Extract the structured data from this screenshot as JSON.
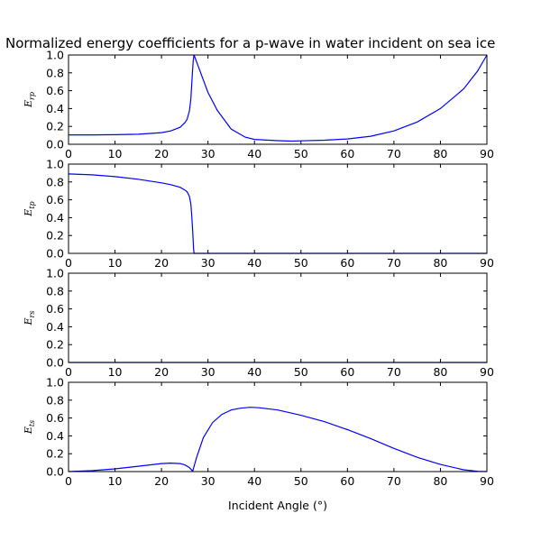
{
  "chart_data": {
    "type": "line",
    "title": "Normalized energy coefficients for a p-wave in water incident on sea ice",
    "xlabel": "Incident Angle (°)",
    "xlim": [
      0,
      90
    ],
    "xticks": [
      "0",
      "10",
      "20",
      "30",
      "40",
      "50",
      "60",
      "70",
      "80",
      "90"
    ],
    "yticks": [
      "0.0",
      "0.2",
      "0.4",
      "0.6",
      "0.8",
      "1.0"
    ],
    "line_color": "#0000ff",
    "grid": false,
    "panels": [
      {
        "ylabel": "E_rp",
        "ylabel_main": "E",
        "ylabel_sub": "rp",
        "ylim": [
          0,
          1
        ],
        "x": [
          0,
          5,
          10,
          15,
          20,
          22,
          24,
          25,
          25.5,
          26,
          26.3,
          26.6,
          26.8,
          27,
          28,
          29,
          30,
          32,
          35,
          38,
          40,
          45,
          48,
          50,
          55,
          60,
          65,
          70,
          75,
          80,
          85,
          88,
          90
        ],
        "y": [
          0.105,
          0.105,
          0.107,
          0.112,
          0.13,
          0.15,
          0.19,
          0.24,
          0.28,
          0.37,
          0.5,
          0.75,
          0.93,
          1.0,
          0.86,
          0.72,
          0.58,
          0.38,
          0.17,
          0.08,
          0.055,
          0.04,
          0.035,
          0.038,
          0.045,
          0.06,
          0.09,
          0.15,
          0.25,
          0.4,
          0.62,
          0.82,
          1.0
        ]
      },
      {
        "ylabel": "E_tp",
        "ylabel_main": "E",
        "ylabel_sub": "tp",
        "ylim": [
          0,
          1
        ],
        "x": [
          0,
          5,
          10,
          15,
          20,
          22,
          24,
          25,
          25.5,
          26,
          26.3,
          26.5,
          26.7,
          26.9,
          27,
          30,
          40,
          50,
          60,
          70,
          80,
          90
        ],
        "y": [
          0.89,
          0.88,
          0.86,
          0.83,
          0.79,
          0.77,
          0.74,
          0.71,
          0.69,
          0.64,
          0.56,
          0.43,
          0.25,
          0.05,
          0.0,
          0.0,
          0.0,
          0.0,
          0.0,
          0.0,
          0.0,
          0.0
        ]
      },
      {
        "ylabel": "E_rs",
        "ylabel_main": "E",
        "ylabel_sub": "rs",
        "ylim": [
          0,
          1
        ],
        "x": [
          0,
          10,
          20,
          30,
          40,
          50,
          60,
          70,
          80,
          90
        ],
        "y": [
          0,
          0,
          0,
          0,
          0,
          0,
          0,
          0,
          0,
          0
        ]
      },
      {
        "ylabel": "E_ts",
        "ylabel_main": "E",
        "ylabel_sub": "ts",
        "ylim": [
          0,
          1
        ],
        "x": [
          0,
          5,
          10,
          15,
          20,
          22,
          24,
          25,
          26,
          26.7,
          27.5,
          29,
          31,
          33,
          35,
          37,
          39,
          41,
          45,
          50,
          55,
          60,
          65,
          70,
          75,
          80,
          85,
          88,
          90
        ],
        "y": [
          0.0,
          0.01,
          0.03,
          0.06,
          0.09,
          0.095,
          0.09,
          0.075,
          0.045,
          0.005,
          0.15,
          0.38,
          0.55,
          0.64,
          0.69,
          0.71,
          0.72,
          0.715,
          0.69,
          0.63,
          0.56,
          0.47,
          0.37,
          0.26,
          0.16,
          0.08,
          0.02,
          0.003,
          0.0
        ]
      }
    ]
  }
}
